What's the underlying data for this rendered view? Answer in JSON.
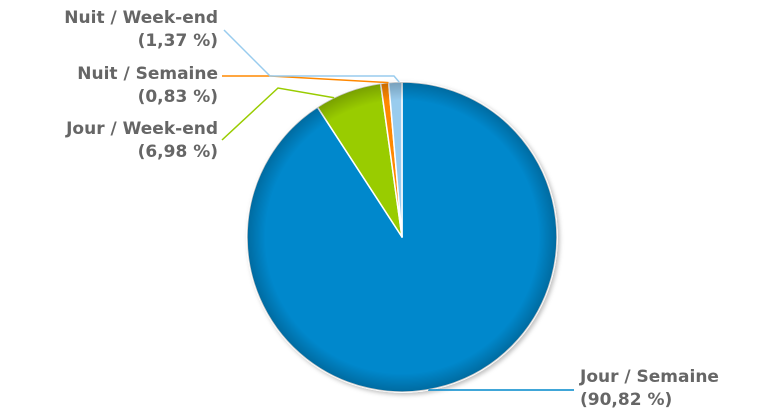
{
  "chart_data": {
    "type": "pie",
    "title": "",
    "slices": [
      {
        "name": "Jour / Semaine",
        "value": 90.82,
        "percent_label": "(90,82 %)",
        "color": "#0088CC"
      },
      {
        "name": "Jour / Week-end",
        "value": 6.98,
        "percent_label": "(6,98 %)",
        "color": "#99CC00"
      },
      {
        "name": "Nuit / Semaine",
        "value": 0.83,
        "percent_label": "(0,83 %)",
        "color": "#FF8800"
      },
      {
        "name": "Nuit / Week-end",
        "value": 1.37,
        "percent_label": "(1,37 %)",
        "color": "#99CCEE"
      }
    ],
    "start_angle_deg": 0,
    "direction": "clockwise",
    "legend": "none",
    "labels": "outside-with-connectors"
  }
}
